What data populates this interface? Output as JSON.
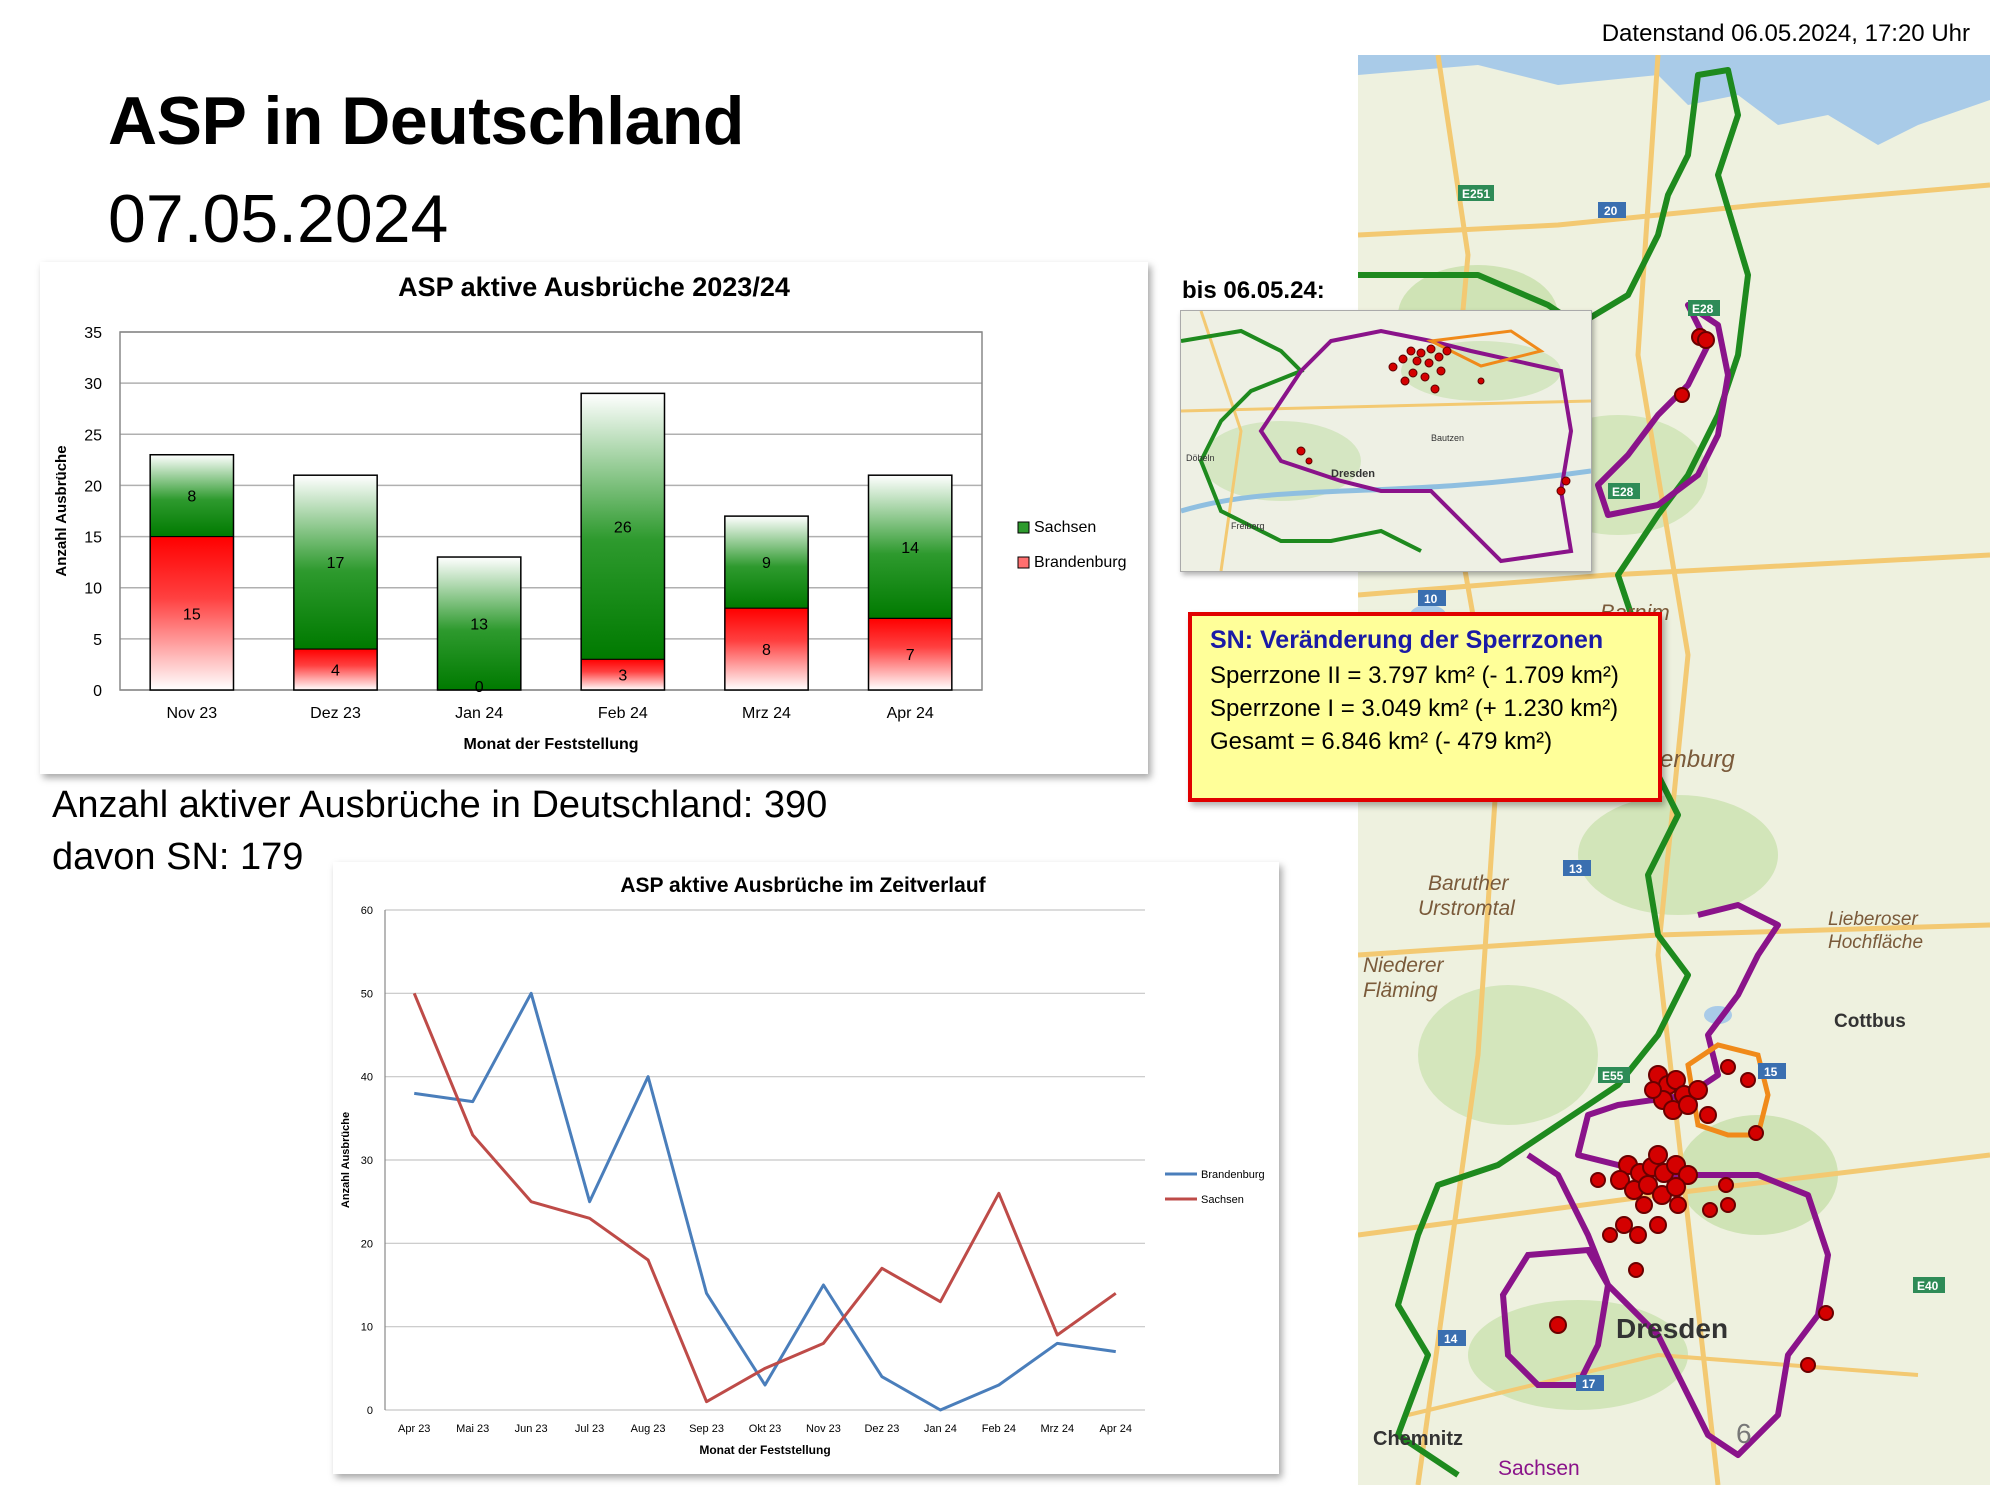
{
  "header": {
    "datenstand": "Datenstand 06.05.2024, 17:20 Uhr",
    "title": "ASP in Deutschland",
    "date": "07.05.2024"
  },
  "summary": {
    "total_label": "Anzahl aktiver Ausbrüche in Deutschland: 390",
    "sn_label": "davon SN: 179"
  },
  "inset": {
    "caption": "bis 06.05.24:",
    "labels": [
      "Dresden",
      "Bautzen",
      "Freiberg",
      "Döbeln"
    ]
  },
  "info_box": {
    "heading": "SN: Veränderung der Sperrzonen",
    "lines": [
      "Sperrzone II = 3.797 km² (-  1.709 km²)",
      "Sperrzone I = 3.049 km² (+ 1.230 km²)",
      "Gesamt = 6.846 km² (- 479 km²)"
    ]
  },
  "map": {
    "labels": [
      "Barnim",
      "Brandenburg",
      "Baruther",
      "Urstromtal",
      "Niederer",
      "Fläming",
      "Lieberoser",
      "Hochfläche",
      "Cottbus",
      "Dresden",
      "Chemnitz",
      "Sachsen"
    ],
    "road_labels": [
      "E251",
      "20",
      "E28",
      "E28",
      "10",
      "13",
      "15",
      "E55",
      "E40",
      "14",
      "17"
    ]
  },
  "page_number": "6",
  "chart_data": [
    {
      "type": "bar",
      "stacked": true,
      "title": "ASP aktive Ausbrüche 2023/24",
      "xlabel": "Monat der Feststellung",
      "ylabel": "Anzahl Ausbrüche",
      "ylim": [
        0,
        35
      ],
      "yticks": [
        0,
        5,
        10,
        15,
        20,
        25,
        30,
        35
      ],
      "categories": [
        "Nov 23",
        "Dez 23",
        "Jan 24",
        "Feb 24",
        "Mrz 24",
        "Apr 24"
      ],
      "series": [
        {
          "name": "Brandenburg",
          "values": [
            15,
            4,
            0,
            3,
            8,
            7
          ],
          "color": "#e00000"
        },
        {
          "name": "Sachsen",
          "values": [
            8,
            17,
            13,
            26,
            9,
            14
          ],
          "color": "#007a00"
        }
      ],
      "legend_position": "right",
      "grid": true
    },
    {
      "type": "line",
      "title": "ASP aktive Ausbrüche im Zeitverlauf",
      "xlabel": "Monat der Feststellung",
      "ylabel": "Anzahl Ausbrüche",
      "ylim": [
        0,
        60
      ],
      "yticks": [
        0,
        10,
        20,
        30,
        40,
        50,
        60
      ],
      "categories": [
        "Apr 23",
        "Mai 23",
        "Jun 23",
        "Jul 23",
        "Aug 23",
        "Sep 23",
        "Okt 23",
        "Nov 23",
        "Dez 23",
        "Jan 24",
        "Feb 24",
        "Mrz 24",
        "Apr 24"
      ],
      "series": [
        {
          "name": "Brandenburg",
          "values": [
            38,
            37,
            50,
            25,
            40,
            14,
            3,
            15,
            4,
            0,
            3,
            8,
            7
          ],
          "color": "#4a7ebb"
        },
        {
          "name": "Sachsen",
          "values": [
            50,
            33,
            25,
            23,
            18,
            1,
            5,
            8,
            17,
            13,
            26,
            9,
            14
          ],
          "color": "#be4b48"
        }
      ],
      "legend_position": "right",
      "grid": true
    }
  ]
}
